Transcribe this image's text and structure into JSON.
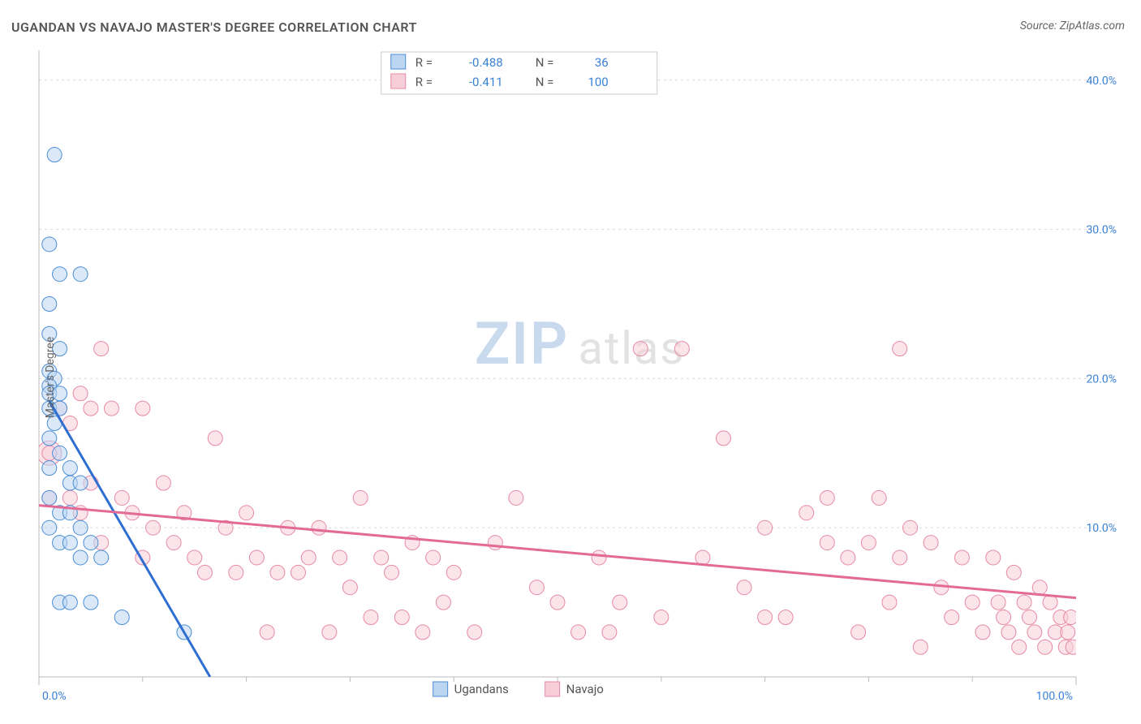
{
  "title": "UGANDAN VS NAVAJO MASTER'S DEGREE CORRELATION CHART",
  "source_label": "Source: ZipAtlas.com",
  "ylabel": "Master's Degree",
  "watermark": {
    "a": "ZIP",
    "b": "atlas"
  },
  "colors": {
    "blue_stroke": "#4b8ed6",
    "blue_fill": "#bcd6f2",
    "pink_stroke": "#e68aa5",
    "pink_fill": "#f7cdd9",
    "trend_blue": "#2e6fd1",
    "trend_pink": "#e36a94",
    "axis_text": "#3b82d6",
    "grid": "#d9d9d9",
    "bg": "#ffffff"
  },
  "chart": {
    "type": "scatter",
    "xlim": [
      0,
      100
    ],
    "ylim": [
      0,
      42
    ],
    "x_ticks_major": [
      0,
      50,
      100
    ],
    "x_ticks_minor": [
      10,
      20,
      30,
      40,
      60,
      70,
      80,
      90
    ],
    "x_tick_labels": {
      "0": "0.0%",
      "50": "",
      "100": "100.0%"
    },
    "y_gridlines": [
      10,
      20,
      30,
      40
    ],
    "y_tick_labels": {
      "10": "10.0%",
      "20": "20.0%",
      "30": "30.0%",
      "40": "40.0%"
    },
    "marker_radius": 9,
    "marker_radius_large": 15,
    "marker_fill_opacity": 0.55,
    "series": [
      {
        "name": "Ugandans",
        "color_stroke": "#4b8ed6",
        "color_fill": "#bcd6f2",
        "R": "-0.488",
        "N": "36",
        "trend": {
          "x1": 1,
          "y1": 18.5,
          "x2": 16.5,
          "y2": 0
        },
        "points": [
          [
            1.5,
            35
          ],
          [
            1,
            29
          ],
          [
            2,
            27
          ],
          [
            4,
            27
          ],
          [
            1,
            25
          ],
          [
            1,
            23
          ],
          [
            2,
            22
          ],
          [
            1,
            20.5
          ],
          [
            1.5,
            20
          ],
          [
            1,
            19.5
          ],
          [
            1,
            19
          ],
          [
            2,
            19
          ],
          [
            1,
            18
          ],
          [
            2,
            18
          ],
          [
            1.5,
            17
          ],
          [
            1,
            16
          ],
          [
            2,
            15
          ],
          [
            1,
            14
          ],
          [
            3,
            14
          ],
          [
            3,
            13
          ],
          [
            4,
            13
          ],
          [
            1,
            12
          ],
          [
            2,
            11
          ],
          [
            3,
            11
          ],
          [
            1,
            10
          ],
          [
            4,
            10
          ],
          [
            2,
            9
          ],
          [
            3,
            9
          ],
          [
            5,
            9
          ],
          [
            4,
            8
          ],
          [
            6,
            8
          ],
          [
            2,
            5
          ],
          [
            3,
            5
          ],
          [
            5,
            5
          ],
          [
            8,
            4
          ],
          [
            14,
            3
          ]
        ]
      },
      {
        "name": "Navajo",
        "color_stroke": "#e68aa5",
        "color_fill": "#f7cdd9",
        "R": "-0.411",
        "N": "100",
        "trend": {
          "x1": 0,
          "y1": 11.5,
          "x2": 100,
          "y2": 5.3
        },
        "points": [
          [
            1,
            15
          ],
          [
            1,
            12
          ],
          [
            2,
            18
          ],
          [
            3,
            17
          ],
          [
            3,
            12
          ],
          [
            4,
            19
          ],
          [
            4,
            11
          ],
          [
            5,
            18
          ],
          [
            5,
            13
          ],
          [
            6,
            22
          ],
          [
            6,
            9
          ],
          [
            7,
            18
          ],
          [
            8,
            12
          ],
          [
            9,
            11
          ],
          [
            10,
            18
          ],
          [
            10,
            8
          ],
          [
            11,
            10
          ],
          [
            12,
            13
          ],
          [
            13,
            9
          ],
          [
            14,
            11
          ],
          [
            15,
            8
          ],
          [
            16,
            7
          ],
          [
            17,
            16
          ],
          [
            18,
            10
          ],
          [
            19,
            7
          ],
          [
            20,
            11
          ],
          [
            21,
            8
          ],
          [
            22,
            3
          ],
          [
            23,
            7
          ],
          [
            24,
            10
          ],
          [
            25,
            7
          ],
          [
            26,
            8
          ],
          [
            27,
            10
          ],
          [
            28,
            3
          ],
          [
            29,
            8
          ],
          [
            30,
            6
          ],
          [
            31,
            12
          ],
          [
            32,
            4
          ],
          [
            33,
            8
          ],
          [
            34,
            7
          ],
          [
            35,
            4
          ],
          [
            36,
            9
          ],
          [
            37,
            3
          ],
          [
            38,
            8
          ],
          [
            39,
            5
          ],
          [
            40,
            7
          ],
          [
            42,
            3
          ],
          [
            44,
            9
          ],
          [
            46,
            12
          ],
          [
            48,
            6
          ],
          [
            50,
            5
          ],
          [
            52,
            3
          ],
          [
            54,
            8
          ],
          [
            56,
            5
          ],
          [
            58,
            22
          ],
          [
            60,
            4
          ],
          [
            62,
            22
          ],
          [
            64,
            8
          ],
          [
            66,
            16
          ],
          [
            68,
            6
          ],
          [
            70,
            10
          ],
          [
            72,
            4
          ],
          [
            74,
            11
          ],
          [
            76,
            12
          ],
          [
            78,
            8
          ],
          [
            79,
            3
          ],
          [
            80,
            9
          ],
          [
            81,
            12
          ],
          [
            82,
            5
          ],
          [
            83,
            8
          ],
          [
            84,
            10
          ],
          [
            85,
            2
          ],
          [
            86,
            9
          ],
          [
            87,
            6
          ],
          [
            88,
            4
          ],
          [
            89,
            8
          ],
          [
            90,
            5
          ],
          [
            91,
            3
          ],
          [
            92,
            8
          ],
          [
            92.5,
            5
          ],
          [
            93,
            4
          ],
          [
            93.5,
            3
          ],
          [
            94,
            7
          ],
          [
            94.5,
            2
          ],
          [
            95,
            5
          ],
          [
            95.5,
            4
          ],
          [
            96,
            3
          ],
          [
            96.5,
            6
          ],
          [
            97,
            2
          ],
          [
            97.5,
            5
          ],
          [
            98,
            3
          ],
          [
            98.5,
            4
          ],
          [
            99,
            2
          ],
          [
            99.2,
            3
          ],
          [
            99.5,
            4
          ],
          [
            99.7,
            2
          ],
          [
            83,
            22
          ],
          [
            76,
            9
          ],
          [
            70,
            4
          ],
          [
            55,
            3
          ]
        ],
        "points_large": [
          [
            1,
            15
          ]
        ]
      }
    ]
  },
  "legend_top": {
    "r_label": "R =",
    "n_label": "N ="
  },
  "legend_bottom": [
    {
      "label": "Ugandans",
      "fill": "#bcd6f2",
      "stroke": "#4b8ed6"
    },
    {
      "label": "Navajo",
      "fill": "#f7cdd9",
      "stroke": "#e68aa5"
    }
  ],
  "typography": {
    "title_fontsize": 16,
    "label_fontsize": 14,
    "legend_fontsize": 15
  }
}
